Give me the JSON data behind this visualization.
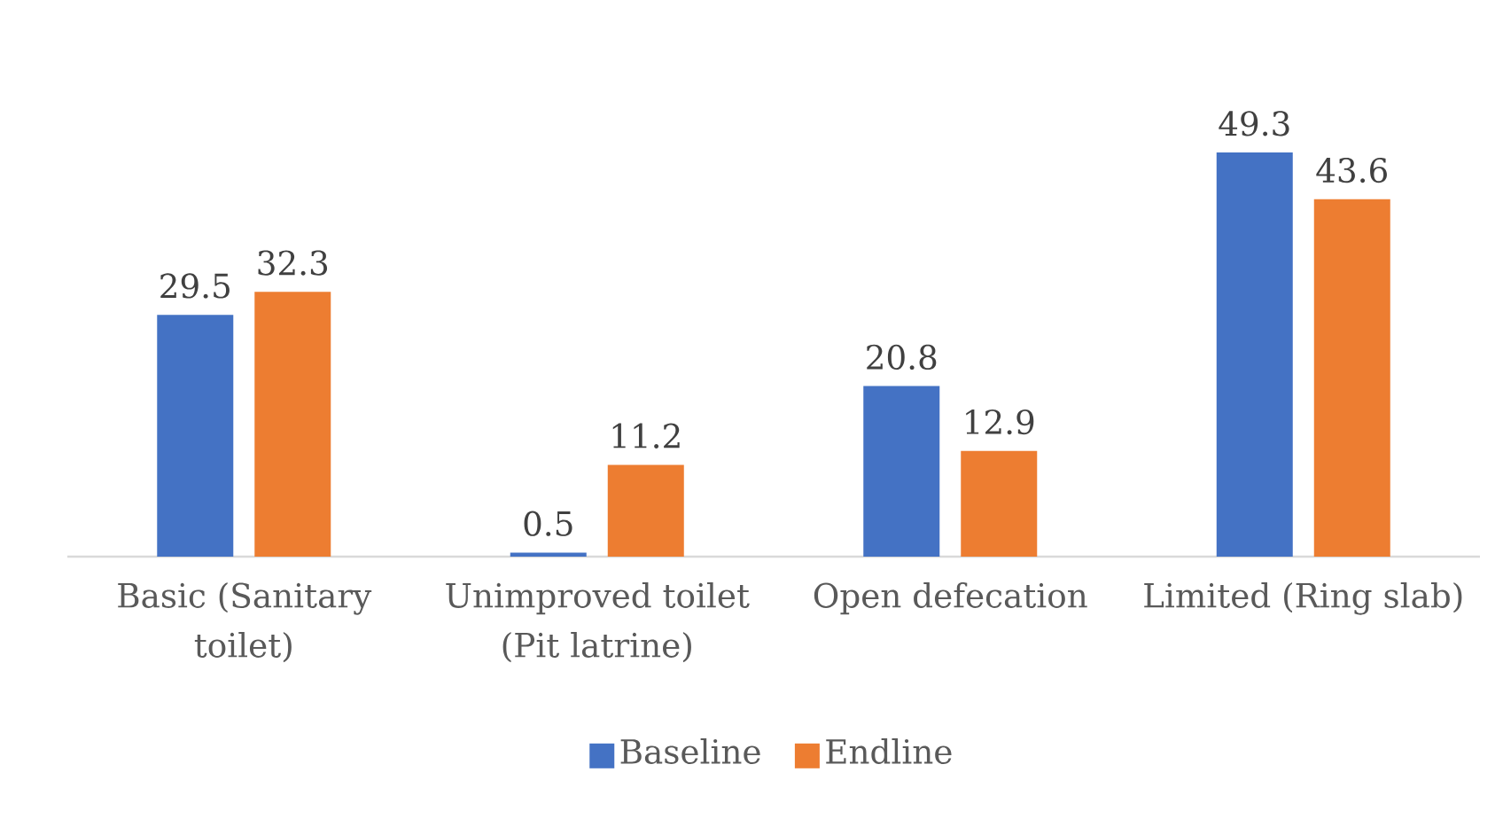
{
  "chart_data": {
    "type": "bar",
    "categories": [
      "Basic (Sanitary toilet)",
      "Unimproved toilet (Pit latrine)",
      "Open defecation",
      "Limited (Ring slab)"
    ],
    "series": [
      {
        "name": "Baseline",
        "color": "#4472c4",
        "values": [
          29.5,
          0.5,
          20.8,
          49.3
        ]
      },
      {
        "name": "Endline",
        "color": "#ed7d31",
        "values": [
          32.3,
          11.2,
          12.9,
          43.6
        ]
      }
    ],
    "data_labels": true,
    "tick_labels": "x",
    "legend": "bottom",
    "grid": false
  }
}
